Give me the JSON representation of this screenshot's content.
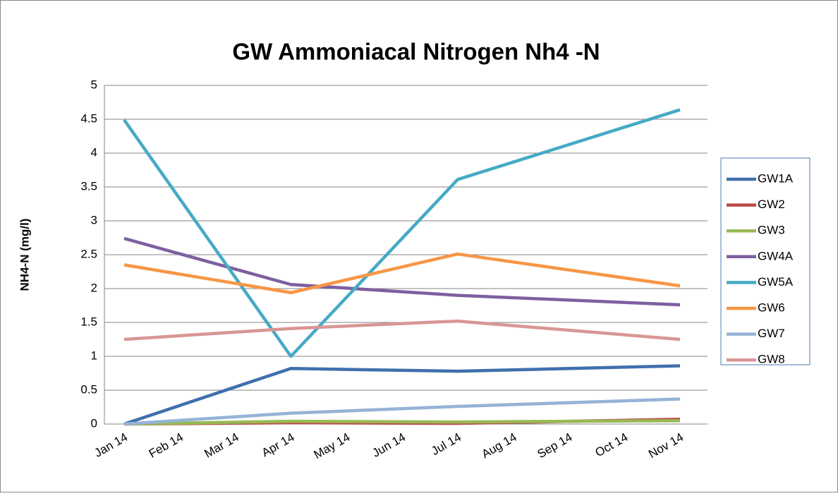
{
  "chart_data": {
    "type": "line",
    "title": "GW Ammoniacal Nitrogen Nh4 -N",
    "y_label": "NH4-N (mg/l)",
    "categories": [
      "Jan 14",
      "Feb 14",
      "Mar 14",
      "Apr 14",
      "May 14",
      "Jun 14",
      "Jul 14",
      "Aug 14",
      "Sep 14",
      "Oct 14",
      "Nov 14"
    ],
    "x": [
      "Jan 14",
      "Apr 14",
      "Jul 14",
      "Nov 14"
    ],
    "series": [
      {
        "name": "GW1A",
        "color": "#4070ad",
        "values": [
          0,
          0.82,
          0.78,
          0.86
        ]
      },
      {
        "name": "GW2",
        "color": "#be4b48",
        "values": [
          0,
          0.02,
          0.01,
          0.07
        ]
      },
      {
        "name": "GW3",
        "color": "#98b954",
        "values": [
          0,
          0.04,
          0.03,
          0.05
        ]
      },
      {
        "name": "GW4A",
        "color": "#7d60a0",
        "values": [
          2.74,
          2.06,
          1.9,
          1.76
        ]
      },
      {
        "name": "GW5A",
        "color": "#46aac5",
        "values": [
          4.49,
          1.0,
          3.61,
          4.64
        ]
      },
      {
        "name": "GW6",
        "color": "#f79646",
        "values": [
          2.35,
          1.94,
          2.51,
          2.04
        ]
      },
      {
        "name": "GW7",
        "color": "#95b3d7",
        "values": [
          0,
          0.16,
          0.26,
          0.37
        ]
      },
      {
        "name": "GW8",
        "color": "#d99694",
        "values": [
          1.25,
          1.41,
          1.52,
          1.25
        ]
      }
    ],
    "ylim": [
      0,
      5
    ],
    "yticks": [
      0,
      0.5,
      1,
      1.5,
      2,
      2.5,
      3,
      3.5,
      4,
      4.5,
      5
    ],
    "grid": true,
    "legend": "right"
  }
}
